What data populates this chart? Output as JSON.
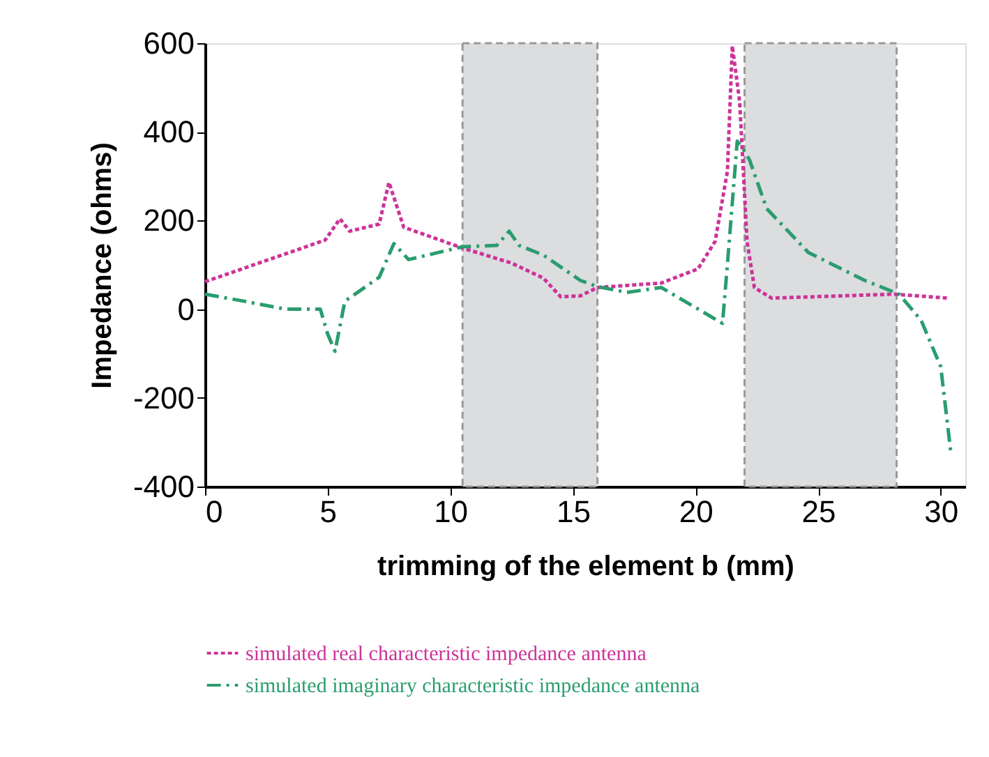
{
  "chart_data": {
    "type": "line",
    "xlabel": "trimming  of the element b (mm)",
    "ylabel": "Impedance (ohms)",
    "xlim": [
      0,
      31
    ],
    "ylim": [
      -400,
      600
    ],
    "xticks": [
      0,
      5,
      10,
      15,
      20,
      25,
      30
    ],
    "yticks": [
      -400,
      -200,
      0,
      200,
      400,
      600
    ],
    "grid": false,
    "legend": "bottom",
    "marker": "none",
    "bands": [
      {
        "axis": "x",
        "from": 10.5,
        "to": 16,
        "color": "#dcdddf"
      },
      {
        "axis": "x",
        "from": 22,
        "to": 28.2,
        "color": "#dcdddf"
      }
    ],
    "series": [
      {
        "name": "simulated real characteristic impedance antenna",
        "color": "#cc3399",
        "line_style": "dotted",
        "x": [
          0,
          4.9,
          5.5,
          5.9,
          7.1,
          7.5,
          8.1,
          10.5,
          12.5,
          13.8,
          14.5,
          15.3,
          16,
          18.6,
          20.1,
          20.8,
          21.3,
          21.5,
          21.8,
          22.1,
          22.4,
          23.1,
          28.1,
          30.3
        ],
        "values": [
          62,
          156,
          204,
          176,
          192,
          286,
          185,
          138,
          104,
          70,
          28,
          30,
          49,
          59,
          91,
          153,
          311,
          594,
          468,
          153,
          49,
          25,
          34,
          25
        ]
      },
      {
        "name": "simulated imaginary characteristic impedance antenna",
        "color": "#2a9d6f",
        "line_style": "dashed",
        "x": [
          0,
          1.6,
          3.3,
          4.7,
          5.0,
          5.3,
          5.7,
          7.1,
          7.7,
          8.3,
          10.5,
          11.9,
          12.4,
          12.8,
          13.8,
          15.3,
          16,
          17.2,
          18.6,
          19.9,
          21.1,
          21.3,
          21.7,
          21.9,
          22.2,
          22.9,
          24.6,
          26.9,
          28.3,
          29.2,
          30,
          30.4
        ],
        "values": [
          34,
          18,
          0,
          0,
          -56,
          -95,
          18,
          72,
          148,
          112,
          141,
          144,
          176,
          144,
          122,
          65,
          51,
          38,
          49,
          7,
          -32,
          101,
          379,
          365,
          337,
          227,
          128,
          65,
          34,
          -25,
          -130,
          -318
        ]
      }
    ]
  }
}
